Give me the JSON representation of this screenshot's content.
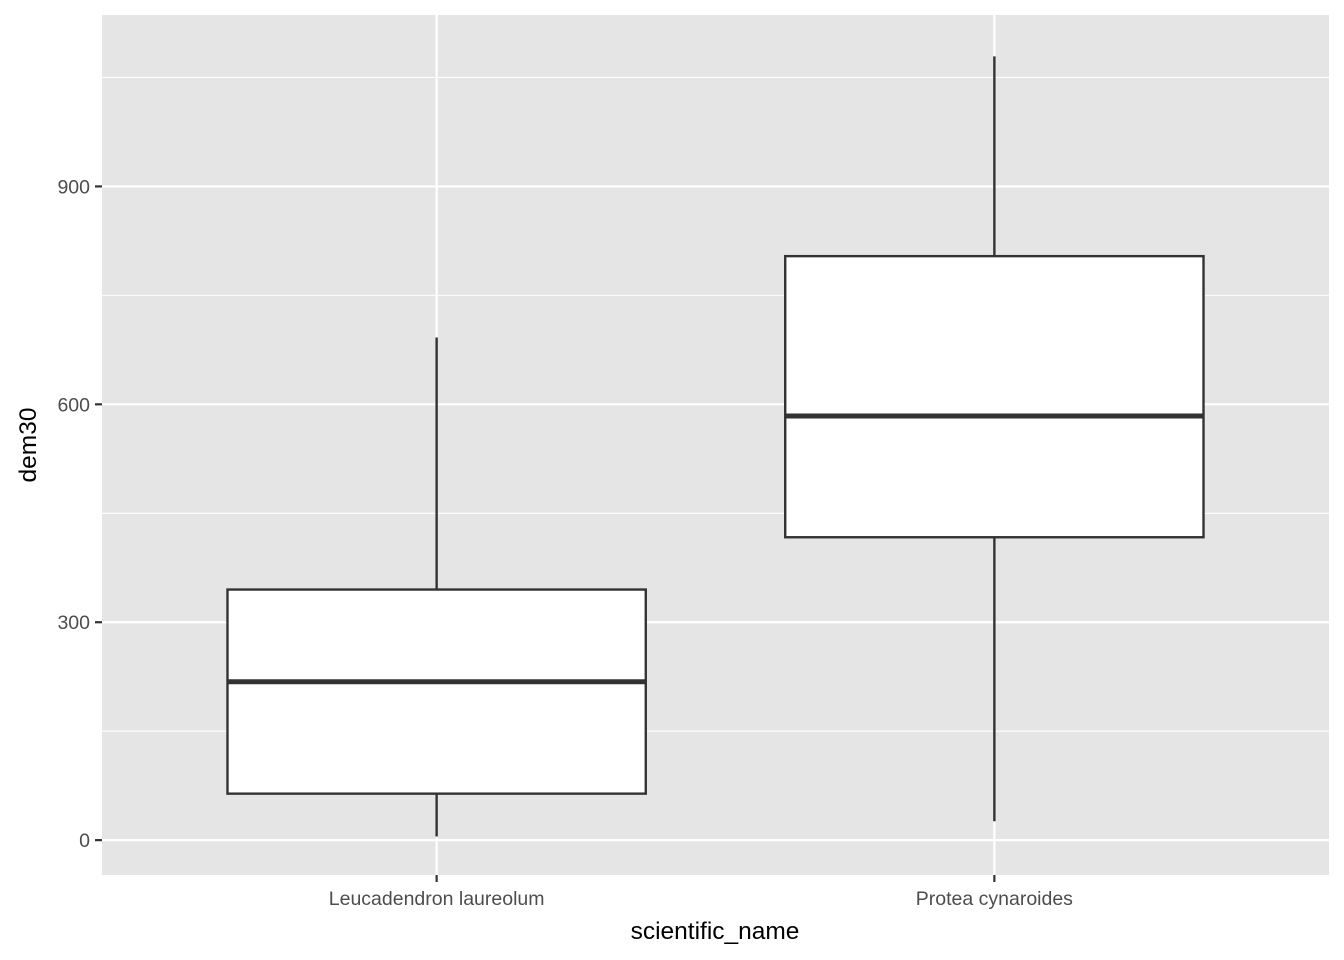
{
  "chart_data": {
    "type": "box",
    "title": "",
    "xlabel": "scientific_name",
    "ylabel": "dem30",
    "ylim": [
      -48,
      1136
    ],
    "y_major_ticks": [
      0,
      300,
      600,
      900
    ],
    "y_minor_ticks": [
      150,
      450,
      750,
      1050
    ],
    "y_tick_labels": [
      "0",
      "300",
      "600",
      "900"
    ],
    "grid": true,
    "legend": "none",
    "colors": {
      "panel": "#e5e5e5",
      "grid": "#ffffff",
      "box_fill": "#ffffff",
      "box_stroke": "#333333",
      "tick_text": "#4d4d4d",
      "axis_title": "#000000"
    },
    "categories": [
      "Leucadendron laureolum",
      "Protea cynaroides"
    ],
    "boxes": [
      {
        "category": "Leucadendron laureolum",
        "min": 5,
        "q1": 64,
        "median": 218,
        "q3": 345,
        "max": 692
      },
      {
        "category": "Protea cynaroides",
        "min": 26,
        "q1": 417,
        "median": 584,
        "q3": 804,
        "max": 1079
      }
    ]
  }
}
